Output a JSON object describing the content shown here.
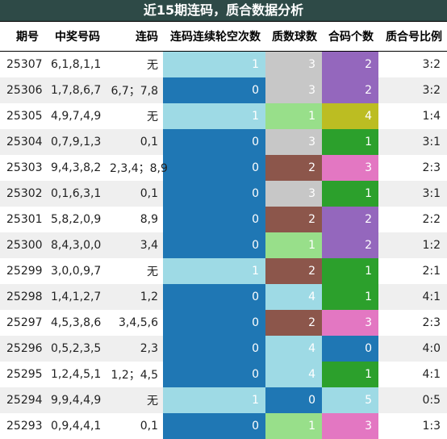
{
  "title": "近15期连码，质合数据分析",
  "headers": {
    "issue": "期号",
    "numbers": "中奖号码",
    "lianma": "连码",
    "gap": "连码连续轮空次数",
    "zhishu": "质数球数",
    "heshu": "合码个数",
    "ratio": "质合号比例"
  },
  "colors": {
    "blue": "#1f77b4",
    "lightblue": "#9edae5",
    "gray": "#c7c7c7",
    "brown": "#8c564b",
    "lightgreen": "#98df8a",
    "green": "#2ca02c",
    "purple": "#9467bd",
    "olive": "#bcbd22",
    "pink": "#e377c2",
    "alt_row": "#efefef",
    "title_bg": "#2e4a47"
  },
  "rows": [
    {
      "issue": "25307",
      "numbers": "6,1,8,1,1",
      "lianma": "无",
      "gap": "1",
      "gap_color": "lightblue",
      "zhishu": "3",
      "zs_color": "gray",
      "heshu": "2",
      "hm_color": "purple",
      "ratio": "3:2"
    },
    {
      "issue": "25306",
      "numbers": "1,7,8,6,7",
      "lianma": "6,7；7,8",
      "gap": "0",
      "gap_color": "blue",
      "zhishu": "3",
      "zs_color": "gray",
      "heshu": "2",
      "hm_color": "purple",
      "ratio": "3:2"
    },
    {
      "issue": "25305",
      "numbers": "4,9,7,4,9",
      "lianma": "无",
      "gap": "1",
      "gap_color": "lightblue",
      "zhishu": "1",
      "zs_color": "lightgreen",
      "heshu": "4",
      "hm_color": "olive",
      "ratio": "1:4"
    },
    {
      "issue": "25304",
      "numbers": "0,7,9,1,3",
      "lianma": "0,1",
      "gap": "0",
      "gap_color": "blue",
      "zhishu": "3",
      "zs_color": "gray",
      "heshu": "1",
      "hm_color": "green",
      "ratio": "3:1"
    },
    {
      "issue": "25303",
      "numbers": "9,4,3,8,2",
      "lianma": "2,3,4；8,9",
      "gap": "0",
      "gap_color": "blue",
      "zhishu": "2",
      "zs_color": "brown",
      "heshu": "3",
      "hm_color": "pink",
      "ratio": "2:3"
    },
    {
      "issue": "25302",
      "numbers": "0,1,6,3,1",
      "lianma": "0,1",
      "gap": "0",
      "gap_color": "blue",
      "zhishu": "3",
      "zs_color": "gray",
      "heshu": "1",
      "hm_color": "green",
      "ratio": "3:1"
    },
    {
      "issue": "25301",
      "numbers": "5,8,2,0,9",
      "lianma": "8,9",
      "gap": "0",
      "gap_color": "blue",
      "zhishu": "2",
      "zs_color": "brown",
      "heshu": "2",
      "hm_color": "purple",
      "ratio": "2:2"
    },
    {
      "issue": "25300",
      "numbers": "8,4,3,0,0",
      "lianma": "3,4",
      "gap": "0",
      "gap_color": "blue",
      "zhishu": "1",
      "zs_color": "lightgreen",
      "heshu": "2",
      "hm_color": "purple",
      "ratio": "1:2"
    },
    {
      "issue": "25299",
      "numbers": "3,0,0,9,7",
      "lianma": "无",
      "gap": "1",
      "gap_color": "lightblue",
      "zhishu": "2",
      "zs_color": "brown",
      "heshu": "1",
      "hm_color": "green",
      "ratio": "2:1"
    },
    {
      "issue": "25298",
      "numbers": "1,4,1,2,7",
      "lianma": "1,2",
      "gap": "0",
      "gap_color": "blue",
      "zhishu": "4",
      "zs_color": "lightblue",
      "heshu": "1",
      "hm_color": "green",
      "ratio": "4:1"
    },
    {
      "issue": "25297",
      "numbers": "4,5,3,8,6",
      "lianma": "3,4,5,6",
      "gap": "0",
      "gap_color": "blue",
      "zhishu": "2",
      "zs_color": "brown",
      "heshu": "3",
      "hm_color": "pink",
      "ratio": "2:3"
    },
    {
      "issue": "25296",
      "numbers": "0,5,2,3,5",
      "lianma": "2,3",
      "gap": "0",
      "gap_color": "blue",
      "zhishu": "4",
      "zs_color": "lightblue",
      "heshu": "0",
      "hm_color": "blue",
      "ratio": "4:0"
    },
    {
      "issue": "25295",
      "numbers": "1,2,4,5,1",
      "lianma": "1,2；4,5",
      "gap": "0",
      "gap_color": "blue",
      "zhishu": "4",
      "zs_color": "lightblue",
      "heshu": "1",
      "hm_color": "green",
      "ratio": "4:1"
    },
    {
      "issue": "25294",
      "numbers": "9,9,4,4,9",
      "lianma": "无",
      "gap": "1",
      "gap_color": "lightblue",
      "zhishu": "0",
      "zs_color": "blue",
      "heshu": "5",
      "hm_color": "lightblue",
      "ratio": "0:5"
    },
    {
      "issue": "25293",
      "numbers": "0,9,4,4,1",
      "lianma": "0,1",
      "gap": "0",
      "gap_color": "blue",
      "zhishu": "1",
      "zs_color": "lightgreen",
      "heshu": "3",
      "hm_color": "pink",
      "ratio": "1:3"
    }
  ]
}
